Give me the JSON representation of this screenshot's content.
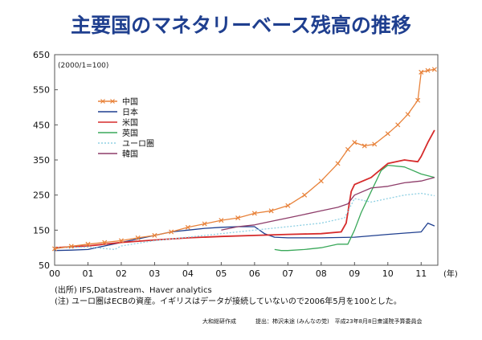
{
  "page_title": "主要国のマネタリーベース残高の推移",
  "chart_data": {
    "type": "line",
    "title": "主要国のマネタリーベース残高の推移",
    "unit_note": "(2000/1=100)",
    "xlabel": "(年)",
    "ylabel": "",
    "x_tick_labels": [
      "00",
      "01",
      "02",
      "03",
      "04",
      "05",
      "06",
      "07",
      "08",
      "09",
      "10",
      "11"
    ],
    "y_ticks": [
      50,
      150,
      250,
      350,
      450,
      550,
      650
    ],
    "xlim": [
      2000.0,
      2011.5
    ],
    "ylim": [
      50,
      650
    ],
    "legend_position": "upper-left",
    "series": [
      {
        "name": "中国",
        "color": "#e8823a",
        "marker": "x",
        "x": [
          2000.0,
          2000.5,
          2001.0,
          2001.5,
          2002.0,
          2002.5,
          2003.0,
          2003.5,
          2004.0,
          2004.5,
          2005.0,
          2005.5,
          2006.0,
          2006.5,
          2007.0,
          2007.5,
          2008.0,
          2008.5,
          2008.8,
          2009.0,
          2009.3,
          2009.6,
          2010.0,
          2010.3,
          2010.6,
          2010.9,
          2011.0,
          2011.2,
          2011.4
        ],
        "y": [
          97,
          104,
          110,
          115,
          120,
          128,
          135,
          145,
          158,
          168,
          178,
          185,
          198,
          205,
          220,
          250,
          290,
          340,
          380,
          400,
          390,
          395,
          425,
          450,
          480,
          520,
          600,
          605,
          608
        ]
      },
      {
        "name": "日本",
        "color": "#1f3f8f",
        "x": [
          2000.0,
          2000.5,
          2001.0,
          2001.5,
          2002.0,
          2002.5,
          2003.0,
          2003.5,
          2004.0,
          2004.5,
          2005.0,
          2005.5,
          2006.0,
          2006.3,
          2006.6,
          2007.0,
          2008.0,
          2009.0,
          2010.0,
          2011.0,
          2011.2,
          2011.4
        ],
        "y": [
          92,
          93,
          95,
          105,
          115,
          125,
          135,
          145,
          150,
          155,
          158,
          160,
          160,
          140,
          130,
          128,
          128,
          130,
          138,
          145,
          170,
          162
        ]
      },
      {
        "name": "米国",
        "color": "#d62b2b",
        "x": [
          2000.0,
          2001.0,
          2002.0,
          2003.0,
          2004.0,
          2005.0,
          2006.0,
          2007.0,
          2008.0,
          2008.6,
          2008.75,
          2008.9,
          2009.0,
          2009.5,
          2010.0,
          2010.5,
          2010.9,
          2011.0,
          2011.2,
          2011.4
        ],
        "y": [
          100,
          105,
          115,
          122,
          128,
          132,
          135,
          138,
          140,
          145,
          170,
          260,
          280,
          300,
          340,
          350,
          345,
          360,
          400,
          435
        ]
      },
      {
        "name": "英国",
        "color": "#3aa85a",
        "x": [
          2006.6,
          2006.8,
          2007.0,
          2007.5,
          2008.0,
          2008.5,
          2008.8,
          2009.0,
          2009.2,
          2009.5,
          2009.8,
          2010.0,
          2010.5,
          2011.0,
          2011.4
        ],
        "y": [
          95,
          92,
          92,
          95,
          100,
          110,
          110,
          150,
          200,
          260,
          320,
          335,
          330,
          310,
          300
        ]
      },
      {
        "name": "ユーロ圏",
        "color": "#8fd0e3",
        "dash": "2,2",
        "x": [
          2000.0,
          2001.0,
          2001.8,
          2002.0,
          2003.0,
          2004.0,
          2005.0,
          2006.0,
          2007.0,
          2008.0,
          2008.7,
          2009.0,
          2009.5,
          2010.0,
          2010.5,
          2011.0,
          2011.4
        ],
        "y": [
          100,
          102,
          95,
          105,
          120,
          130,
          140,
          150,
          160,
          170,
          185,
          240,
          230,
          240,
          250,
          255,
          248
        ]
      },
      {
        "name": "韓国",
        "color": "#8e3d6a",
        "x": [
          2005.0,
          2005.5,
          2006.0,
          2006.5,
          2007.0,
          2007.5,
          2008.0,
          2008.5,
          2008.8,
          2009.0,
          2009.5,
          2010.0,
          2010.5,
          2011.0,
          2011.4
        ],
        "y": [
          150,
          160,
          165,
          175,
          185,
          195,
          205,
          215,
          225,
          250,
          270,
          275,
          285,
          290,
          300
        ]
      }
    ]
  },
  "footnotes": {
    "source": "(出所) IFS,Datastream、Haver analytics",
    "note": "(注) ユーロ圏はECBの資産。イギリスはデータが接続していないので2006年5月を100とした。",
    "made_by": "大和総研作成",
    "submitted_by": "提出：柿沢未途 (みんなの党)　平成23年8月8日衆議院予算委員会"
  }
}
